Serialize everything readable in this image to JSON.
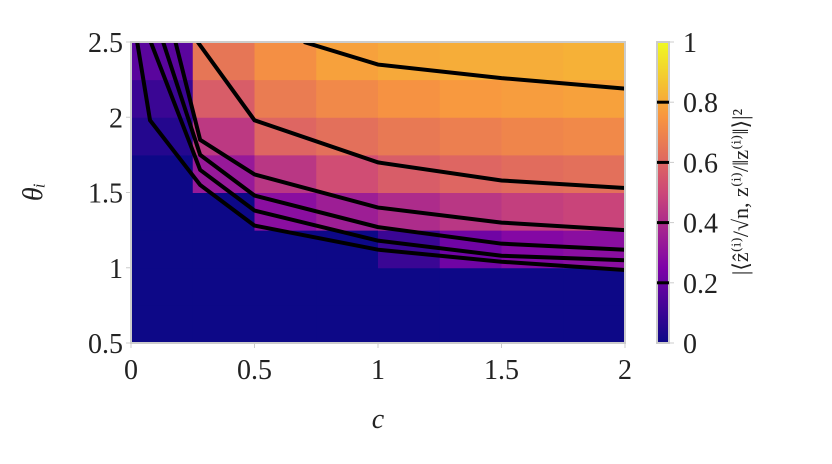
{
  "chart_data": {
    "type": "heatmap",
    "xlabel": "c",
    "ylabel": "θᵢ",
    "colorbar_label": "|⟨ẑ⁽ⁱ⁾/√n, z⁽ⁱ⁾/‖z⁽ⁱ⁾‖⟩|²",
    "x": [
      0.125,
      0.375,
      0.625,
      0.875,
      1.125,
      1.375,
      1.625,
      1.875
    ],
    "y": [
      0.625,
      0.875,
      1.125,
      1.375,
      1.625,
      1.875,
      2.125,
      2.375
    ],
    "z": [
      [
        0,
        0,
        0,
        0,
        0,
        0,
        0,
        0
      ],
      [
        0,
        0,
        0,
        0,
        0,
        0,
        0,
        0
      ],
      [
        0,
        0,
        0,
        0,
        0.1,
        0.22,
        0.27,
        0.29
      ],
      [
        0,
        0,
        0.29,
        0.35,
        0.4,
        0.44,
        0.47,
        0.49
      ],
      [
        0,
        0.33,
        0.44,
        0.52,
        0.57,
        0.6,
        0.62,
        0.63
      ],
      [
        0.05,
        0.45,
        0.6,
        0.63,
        0.66,
        0.68,
        0.7,
        0.71
      ],
      [
        0.1,
        0.57,
        0.67,
        0.71,
        0.74,
        0.76,
        0.77,
        0.78
      ],
      [
        0.17,
        0.65,
        0.73,
        0.78,
        0.8,
        0.81,
        0.81,
        0.82
      ]
    ],
    "colormap": [
      "#0d0887",
      "#7e03a8",
      "#cc4778",
      "#f89540",
      "#f0f921"
    ],
    "clim": [
      0,
      1
    ],
    "cticks": [
      0,
      0.2,
      0.4,
      0.6,
      0.8,
      1
    ],
    "levels": [
      0.2,
      0.4,
      0.6,
      0.8
    ],
    "contours": [
      {
        "x": [
          0.025,
          0.077,
          0.28,
          0.5,
          1,
          1.5,
          2
        ],
        "y": [
          2.5,
          1.98,
          1.55,
          1.28,
          1.12,
          1.04,
          0.985
        ]
      },
      {
        "x": [
          0.08,
          0.28,
          0.5,
          1,
          1.5,
          2
        ],
        "y": [
          2.5,
          1.65,
          1.38,
          1.18,
          1.08,
          1.05
        ]
      },
      {
        "x": [
          0.13,
          0.28,
          0.5,
          1,
          1.5,
          2
        ],
        "y": [
          2.5,
          1.75,
          1.48,
          1.27,
          1.16,
          1.12
        ]
      },
      {
        "x": [
          0.18,
          0.28,
          0.5,
          1,
          1.5,
          2
        ],
        "y": [
          2.5,
          1.85,
          1.62,
          1.4,
          1.3,
          1.25
        ]
      },
      {
        "x": [
          0.27,
          0.5,
          1,
          1.5,
          2
        ],
        "y": [
          2.5,
          1.98,
          1.7,
          1.58,
          1.53
        ]
      },
      {
        "x": [
          0.7,
          1,
          1.5,
          2
        ],
        "y": [
          2.5,
          2.35,
          2.26,
          2.19
        ]
      }
    ],
    "xlim": [
      0,
      2
    ],
    "ylim": [
      0.5,
      2.5
    ],
    "xticks": [
      0,
      0.5,
      1,
      1.5,
      2
    ],
    "yticks": [
      0.5,
      1,
      1.5,
      2,
      2.5
    ]
  }
}
